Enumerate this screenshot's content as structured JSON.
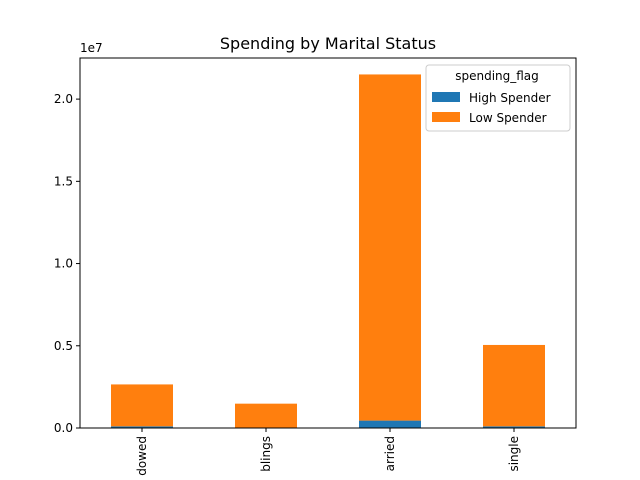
{
  "chart_data": {
    "type": "bar",
    "stacked": true,
    "title": "Spending by Marital Status",
    "xlabel": "",
    "ylabel": "",
    "y_offset_label": "1e7",
    "ylim": [
      0,
      2.25
    ],
    "yticks": [
      "0.0",
      "0.5",
      "1.0",
      "1.5",
      "2.0"
    ],
    "categories": [
      "dowed",
      "blings",
      "arried",
      "single"
    ],
    "series": [
      {
        "name": "High Spender",
        "color": "#1f77b4",
        "values": [
          0.01,
          0.0,
          0.045,
          0.01
        ]
      },
      {
        "name": "Low Spender",
        "color": "#ff7f0e",
        "values": [
          0.255,
          0.148,
          2.105,
          0.495
        ]
      }
    ],
    "legend": {
      "title": "spending_flag",
      "placement": "top-right"
    },
    "grid": false
  }
}
